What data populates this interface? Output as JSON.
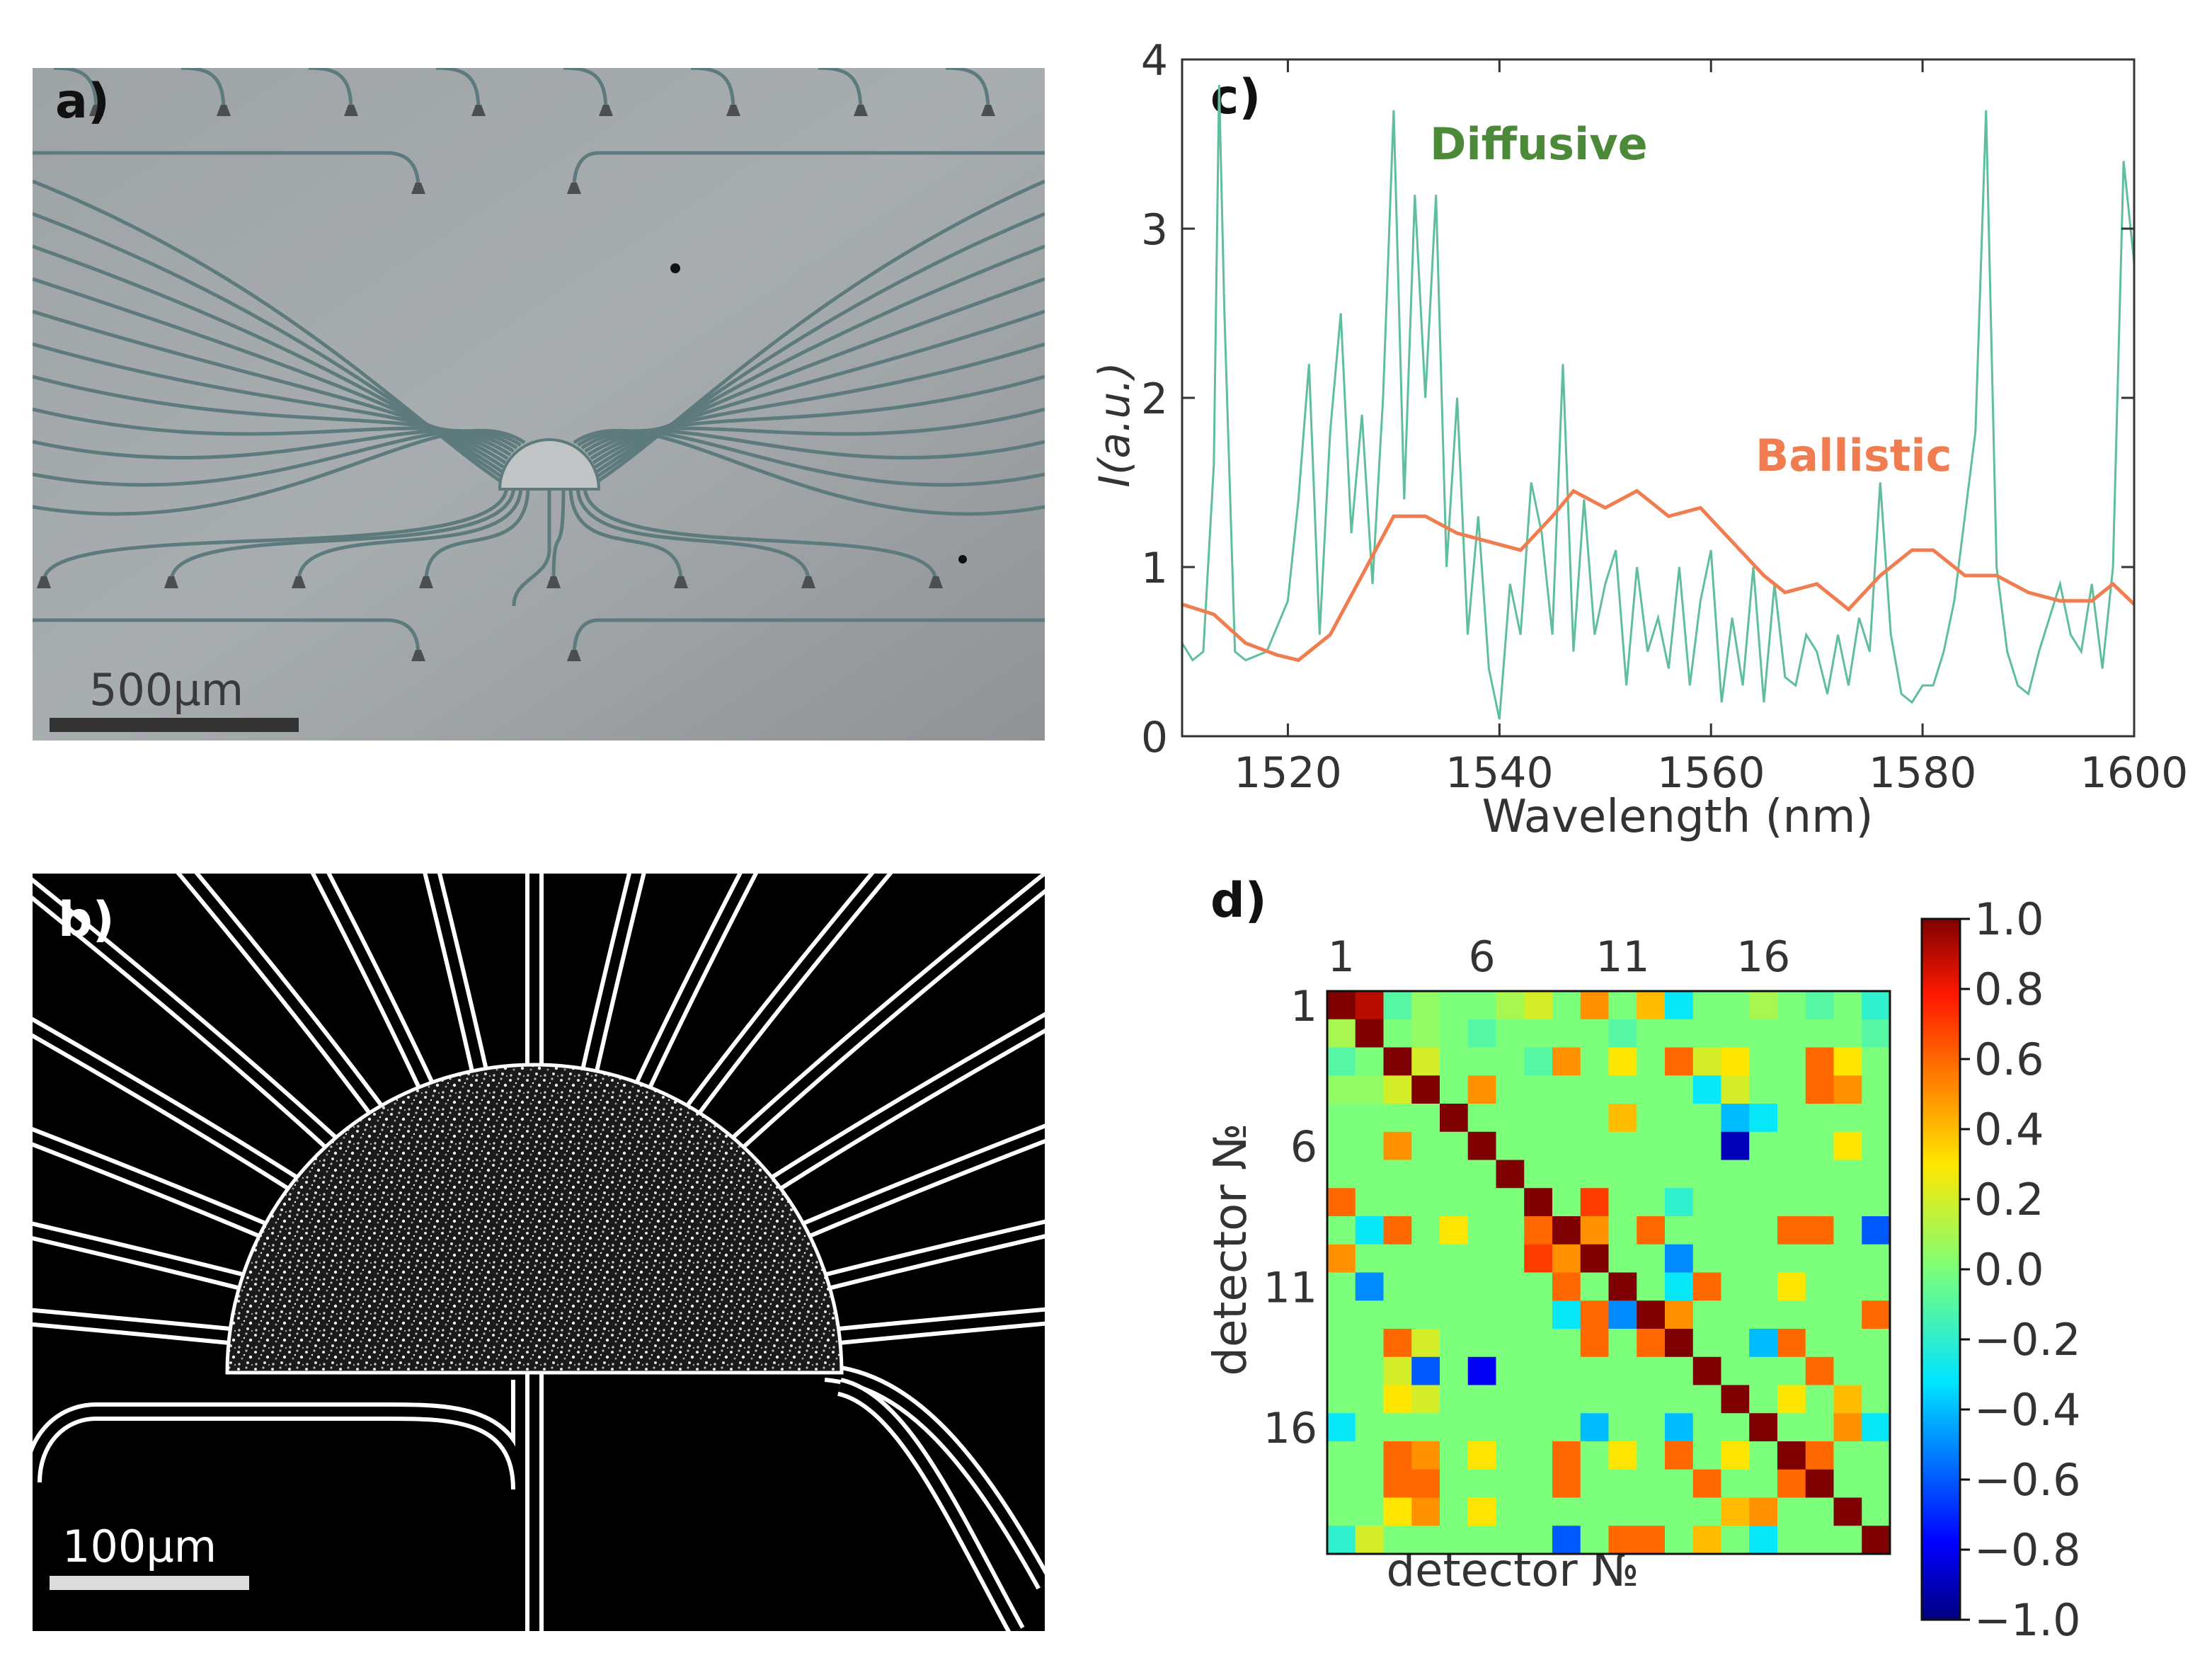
{
  "panels": {
    "a": {
      "label": "a)",
      "scale_text": "500µm"
    },
    "b": {
      "label": "b)",
      "scale_text": "100µm"
    },
    "c": {
      "label": "c)"
    },
    "d": {
      "label": "d)"
    }
  },
  "chart_data": [
    {
      "type": "line",
      "panel": "c",
      "xlabel": "Wavelength (nm)",
      "ylabel": "I(a.u.)",
      "xlim": [
        1510,
        1600
      ],
      "ylim": [
        0,
        4
      ],
      "xticks": [
        1520,
        1540,
        1560,
        1580,
        1600
      ],
      "yticks": [
        0,
        1,
        2,
        3,
        4
      ],
      "annotations": [
        "Diffusive",
        "Ballistic"
      ],
      "series": [
        {
          "name": "Diffusive",
          "color": "#5fbf9a",
          "x": [
            1510,
            1511,
            1512,
            1513,
            1513.5,
            1514,
            1515,
            1516,
            1518,
            1520,
            1521,
            1522,
            1523,
            1524,
            1525,
            1526,
            1527,
            1528,
            1529,
            1530,
            1531,
            1532,
            1533,
            1534,
            1535,
            1536,
            1537,
            1538,
            1539,
            1540,
            1541,
            1542,
            1543,
            1544,
            1545,
            1546,
            1547,
            1548,
            1549,
            1550,
            1551,
            1552,
            1553,
            1554,
            1555,
            1556,
            1557,
            1558,
            1559,
            1560,
            1561,
            1562,
            1563,
            1564,
            1565,
            1566,
            1567,
            1568,
            1569,
            1570,
            1571,
            1572,
            1573,
            1574,
            1575,
            1576,
            1577,
            1578,
            1579,
            1580,
            1581,
            1582,
            1583,
            1584,
            1585,
            1586,
            1587,
            1588,
            1589,
            1590,
            1591,
            1592,
            1593,
            1594,
            1595,
            1596,
            1597,
            1598,
            1599,
            1600
          ],
          "values": [
            0.55,
            0.45,
            0.5,
            1.6,
            3.85,
            2.5,
            0.5,
            0.45,
            0.5,
            0.8,
            1.4,
            2.2,
            0.6,
            1.8,
            2.5,
            1.2,
            1.9,
            0.9,
            2.0,
            3.7,
            1.4,
            3.2,
            2.0,
            3.2,
            1.0,
            2.0,
            0.6,
            1.3,
            0.4,
            0.1,
            0.9,
            0.6,
            1.5,
            1.2,
            0.6,
            2.2,
            0.5,
            1.4,
            0.6,
            0.9,
            1.1,
            0.3,
            1.0,
            0.5,
            0.7,
            0.4,
            1.0,
            0.3,
            0.8,
            1.1,
            0.2,
            0.7,
            0.3,
            1.0,
            0.2,
            0.9,
            0.35,
            0.3,
            0.6,
            0.5,
            0.25,
            0.6,
            0.3,
            0.7,
            0.5,
            1.5,
            0.6,
            0.25,
            0.2,
            0.3,
            0.3,
            0.5,
            0.8,
            1.3,
            1.8,
            3.7,
            1.0,
            0.5,
            0.3,
            0.25,
            0.5,
            0.7,
            0.9,
            0.6,
            0.5,
            0.9,
            0.4,
            1.0,
            3.4,
            2.8
          ]
        },
        {
          "name": "Ballistic",
          "color": "#f07d4f",
          "x": [
            1510,
            1513,
            1516,
            1519,
            1521,
            1524,
            1527,
            1530,
            1533,
            1536,
            1539,
            1542,
            1545,
            1547,
            1550,
            1553,
            1556,
            1559,
            1562,
            1565,
            1567,
            1570,
            1573,
            1576,
            1579,
            1581,
            1584,
            1587,
            1590,
            1593,
            1596,
            1598,
            1600
          ],
          "values": [
            0.78,
            0.72,
            0.55,
            0.48,
            0.45,
            0.6,
            0.95,
            1.3,
            1.3,
            1.2,
            1.15,
            1.1,
            1.3,
            1.45,
            1.35,
            1.45,
            1.3,
            1.35,
            1.15,
            0.95,
            0.85,
            0.9,
            0.75,
            0.95,
            1.1,
            1.1,
            0.95,
            0.95,
            0.85,
            0.8,
            0.8,
            0.9,
            0.78
          ]
        }
      ]
    },
    {
      "type": "heatmap",
      "panel": "d",
      "xlabel": "detector №",
      "ylabel": "detector №",
      "ticks": [
        1,
        6,
        11,
        16
      ],
      "colorbar": {
        "ticks": [
          "1.0",
          "0.8",
          "0.6",
          "0.4",
          "0.2",
          "0.0",
          "−0.2",
          "−0.4",
          "−0.6",
          "−0.8",
          "−1.0"
        ],
        "range": [
          -1,
          1
        ]
      },
      "size": 20,
      "values": [
        [
          1.0,
          0.9,
          -0.1,
          0.05,
          0.0,
          0.0,
          0.1,
          0.2,
          0.0,
          0.5,
          0.0,
          0.4,
          -0.3,
          0.0,
          0.0,
          0.1,
          0.0,
          -0.1,
          0.0,
          -0.2
        ],
        [
          0.1,
          1.0,
          0.0,
          0.05,
          0.0,
          -0.1,
          0.0,
          0.0,
          0.0,
          0.0,
          -0.1,
          0.0,
          0.0,
          0.0,
          0.0,
          0.0,
          0.0,
          0.0,
          0.0,
          -0.1
        ],
        [
          -0.1,
          0.0,
          1.0,
          0.2,
          0.0,
          0.0,
          0.0,
          -0.1,
          0.5,
          0.0,
          0.3,
          0.0,
          0.6,
          0.2,
          0.3,
          0.0,
          0.0,
          0.6,
          0.3,
          0.0
        ],
        [
          0.05,
          0.05,
          0.2,
          1.0,
          0.0,
          0.5,
          0.0,
          0.0,
          0.0,
          0.0,
          0.0,
          0.0,
          0.0,
          -0.3,
          0.2,
          0.0,
          0.0,
          0.6,
          0.5,
          0.0
        ],
        [
          0.0,
          0.0,
          0.0,
          0.0,
          1.0,
          0.0,
          0.0,
          0.0,
          0.0,
          0.0,
          0.4,
          0.0,
          0.0,
          0.0,
          -0.4,
          -0.3,
          0.0,
          0.0,
          0.0,
          0.0
        ],
        [
          0.0,
          0.0,
          0.5,
          0.0,
          0.0,
          1.0,
          0.0,
          0.0,
          0.0,
          0.0,
          0.0,
          0.0,
          0.0,
          0.0,
          -0.9,
          0.0,
          0.0,
          0.0,
          0.3,
          0.0
        ],
        [
          0.0,
          0.0,
          0.0,
          0.0,
          0.0,
          0.0,
          1.0,
          0.0,
          0.0,
          0.0,
          0.0,
          0.0,
          0.0,
          0.0,
          0.0,
          0.0,
          0.0,
          0.0,
          0.0,
          0.0
        ],
        [
          0.6,
          0.0,
          0.0,
          0.0,
          0.0,
          0.0,
          0.0,
          1.0,
          0.0,
          0.7,
          0.0,
          0.0,
          -0.2,
          0.0,
          0.0,
          0.0,
          0.0,
          0.0,
          0.0,
          0.0
        ],
        [
          0.0,
          -0.3,
          0.6,
          0.0,
          0.3,
          0.0,
          0.0,
          0.6,
          1.0,
          0.5,
          0.0,
          0.6,
          0.0,
          0.0,
          0.0,
          0.0,
          0.6,
          0.6,
          0.0,
          -0.6
        ],
        [
          0.5,
          0.0,
          0.0,
          0.0,
          0.0,
          0.0,
          0.0,
          0.7,
          0.5,
          1.0,
          0.0,
          0.0,
          -0.5,
          0.0,
          0.0,
          0.0,
          0.0,
          0.0,
          0.0,
          0.0
        ],
        [
          0.0,
          -0.5,
          0.0,
          0.0,
          0.0,
          0.0,
          0.0,
          0.0,
          0.6,
          0.0,
          1.0,
          0.0,
          -0.3,
          0.6,
          0.0,
          0.0,
          0.3,
          0.0,
          0.0,
          0.0
        ],
        [
          0.0,
          0.0,
          0.0,
          0.0,
          0.0,
          0.0,
          0.0,
          0.0,
          -0.3,
          0.6,
          -0.5,
          1.0,
          0.5,
          0.0,
          0.0,
          0.0,
          0.0,
          0.0,
          0.0,
          0.6
        ],
        [
          0.0,
          0.0,
          0.6,
          0.2,
          0.0,
          0.0,
          0.0,
          0.0,
          0.0,
          0.6,
          0.0,
          0.6,
          1.0,
          0.0,
          0.0,
          -0.4,
          0.6,
          0.0,
          0.0,
          0.0
        ],
        [
          0.0,
          0.0,
          0.2,
          -0.6,
          0.0,
          -0.8,
          0.0,
          0.0,
          0.0,
          0.0,
          0.0,
          0.0,
          0.0,
          1.0,
          0.0,
          0.0,
          0.0,
          0.6,
          0.0,
          0.0
        ],
        [
          0.0,
          0.0,
          0.3,
          0.2,
          0.0,
          0.0,
          0.0,
          0.0,
          0.0,
          0.0,
          0.0,
          0.0,
          0.0,
          0.0,
          1.0,
          0.0,
          0.3,
          0.0,
          0.4,
          0.0
        ],
        [
          -0.3,
          0.0,
          0.0,
          0.0,
          0.0,
          0.0,
          0.0,
          0.0,
          0.0,
          -0.4,
          0.0,
          0.0,
          -0.4,
          0.0,
          0.0,
          1.0,
          0.0,
          0.0,
          0.5,
          -0.3
        ],
        [
          0.0,
          0.0,
          0.6,
          0.5,
          0.0,
          0.3,
          0.0,
          0.0,
          0.6,
          0.0,
          0.3,
          0.0,
          0.6,
          0.0,
          0.3,
          0.0,
          1.0,
          0.6,
          0.0,
          0.0
        ],
        [
          0.0,
          0.0,
          0.6,
          0.6,
          0.0,
          0.0,
          0.0,
          0.0,
          0.6,
          0.0,
          0.0,
          0.0,
          0.0,
          0.6,
          0.0,
          0.0,
          0.6,
          1.0,
          0.0,
          0.0
        ],
        [
          0.0,
          0.0,
          0.3,
          0.5,
          0.0,
          0.3,
          0.0,
          0.0,
          0.0,
          0.0,
          0.0,
          0.0,
          0.0,
          0.0,
          0.4,
          0.5,
          0.0,
          0.0,
          1.0,
          0.0
        ],
        [
          -0.2,
          0.2,
          0.0,
          0.0,
          0.0,
          0.0,
          0.0,
          0.0,
          -0.6,
          0.0,
          0.6,
          0.6,
          0.0,
          0.4,
          0.0,
          -0.3,
          0.0,
          0.0,
          0.0,
          1.0
        ]
      ]
    }
  ]
}
